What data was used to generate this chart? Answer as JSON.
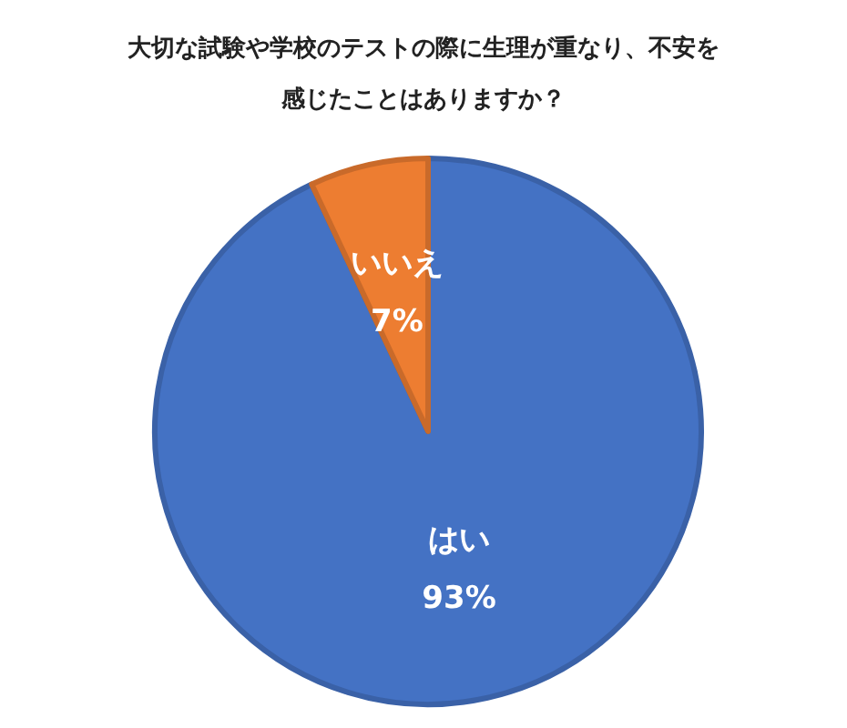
{
  "chart_data": {
    "type": "pie",
    "title": "大切な試験や学校のテストの際に生理が重なり、不安を感じたことはありますか？",
    "categories": [
      "はい",
      "いいえ"
    ],
    "values": [
      93,
      7
    ],
    "colors": [
      "#4472c4",
      "#ed7d31"
    ],
    "value_labels": [
      "93%",
      "7%"
    ]
  }
}
